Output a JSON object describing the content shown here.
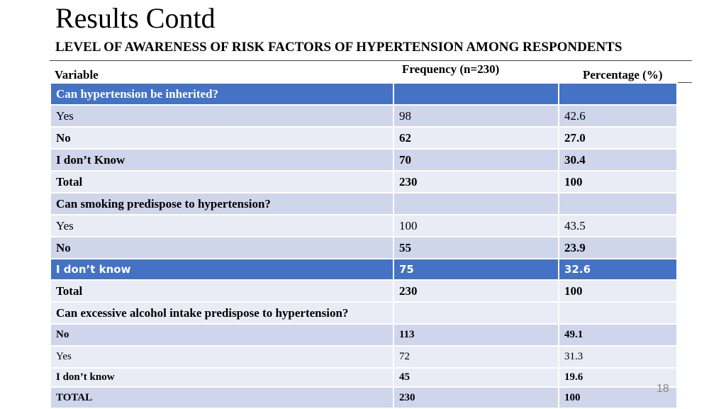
{
  "title": "Results Contd",
  "subtitle": "LEVEL OF AWARENESS OF RISK FACTORS OF HYPERTENSION AMONG RESPONDENTS",
  "headers": {
    "variable": "Variable",
    "frequency": "Frequency (n=230)",
    "percentage": "Percentage (%)"
  },
  "rows": [
    [
      "Can hypertension be inherited?",
      "",
      ""
    ],
    [
      "Yes",
      "98",
      "42.6"
    ],
    [
      "No",
      "62",
      "27.0"
    ],
    [
      "I don’t Know",
      "70",
      "30.4"
    ],
    [
      "Total",
      "230",
      "100"
    ],
    [
      "Can smoking predispose to hypertension?",
      "",
      ""
    ],
    [
      "Yes",
      "100",
      "43.5"
    ],
    [
      "No",
      "55",
      "23.9"
    ],
    [
      "I don’t know",
      "75",
      "32.6"
    ],
    [
      "Total",
      "230",
      "100"
    ],
    [
      "Can excessive alcohol intake predispose to hypertension?",
      "",
      ""
    ],
    [
      "No",
      "113",
      "49.1"
    ],
    [
      "Yes",
      "72",
      "31.3"
    ],
    [
      "I don’t know",
      "45",
      "19.6"
    ],
    [
      "TOTAL",
      "230",
      "100"
    ]
  ],
  "page_number": "18"
}
